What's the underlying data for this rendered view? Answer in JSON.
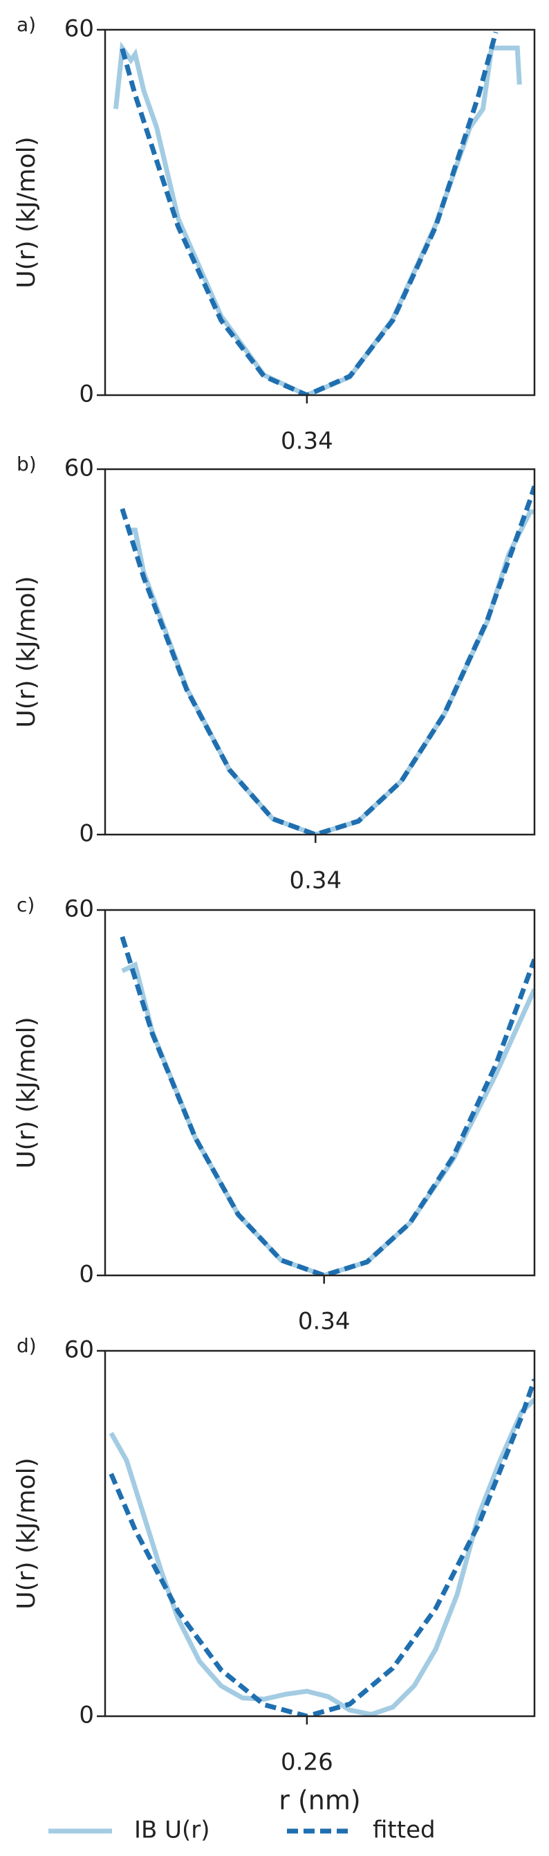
{
  "chart_data": [
    {
      "type": "line",
      "panel_label": "a)",
      "ylabel": "U(r) (kJ/mol)",
      "xlim": [
        0.293,
        0.393
      ],
      "xticks": [
        0.34
      ],
      "ylim": [
        0,
        60
      ],
      "yticks": [
        0,
        60
      ],
      "series": [
        {
          "color": "#a3cce3",
          "dash": false,
          "x": [
            0.2955,
            0.297,
            0.299,
            0.3,
            0.302,
            0.305,
            0.31,
            0.32,
            0.33,
            0.34,
            0.35,
            0.36,
            0.37,
            0.378,
            0.381,
            0.383,
            0.386,
            0.389,
            0.3895
          ],
          "values": [
            47,
            57,
            55,
            56,
            50,
            44,
            29,
            13,
            3.3,
            0,
            3,
            12.5,
            28,
            44,
            47,
            57,
            57,
            57,
            51
          ]
        },
        {
          "color": "#1f6fb0",
          "dash": true,
          "x": [
            0.297,
            0.3,
            0.31,
            0.32,
            0.33,
            0.34,
            0.35,
            0.36,
            0.37,
            0.38,
            0.384
          ],
          "values": [
            56.9,
            49.3,
            27.7,
            12.3,
            3.1,
            0,
            3.1,
            12.3,
            27.7,
            49.3,
            59.6
          ]
        }
      ]
    },
    {
      "type": "line",
      "panel_label": "b)",
      "ylabel": "U(r) (kJ/mol)",
      "xlim": [
        0.291,
        0.391
      ],
      "xticks": [
        0.34
      ],
      "ylim": [
        0,
        60
      ],
      "yticks": [
        0,
        60
      ],
      "series": [
        {
          "color": "#a3cce3",
          "dash": false,
          "x": [
            0.296,
            0.298,
            0.3,
            0.31,
            0.32,
            0.33,
            0.34,
            0.35,
            0.36,
            0.37,
            0.38,
            0.385,
            0.39,
            0.391
          ],
          "values": [
            50,
            50,
            43,
            24,
            10.6,
            2.6,
            0,
            2.2,
            8.8,
            19.8,
            35,
            46,
            53,
            53
          ]
        },
        {
          "color": "#1f6fb0",
          "dash": true,
          "x": [
            0.295,
            0.3,
            0.31,
            0.32,
            0.33,
            0.34,
            0.35,
            0.36,
            0.37,
            0.38,
            0.39,
            0.391
          ],
          "values": [
            53.5,
            42.2,
            23.8,
            10.6,
            2.6,
            0,
            2.2,
            8.8,
            19.8,
            35.2,
            55,
            57.2
          ]
        }
      ]
    },
    {
      "type": "line",
      "panel_label": "c)",
      "ylabel": "U(r) (kJ/mol)",
      "xlim": [
        0.289,
        0.389
      ],
      "xticks": [
        0.34
      ],
      "ylim": [
        0,
        60
      ],
      "yticks": [
        0,
        60
      ],
      "series": [
        {
          "color": "#a3cce3",
          "dash": false,
          "x": [
            0.293,
            0.296,
            0.3,
            0.31,
            0.32,
            0.33,
            0.34,
            0.35,
            0.36,
            0.37,
            0.38,
            0.389
          ],
          "values": [
            50,
            51,
            40,
            22.6,
            10,
            2.5,
            0,
            2.2,
            8.6,
            19,
            33,
            47
          ]
        },
        {
          "color": "#1f6fb0",
          "dash": true,
          "x": [
            0.293,
            0.3,
            0.31,
            0.32,
            0.33,
            0.34,
            0.35,
            0.36,
            0.37,
            0.38,
            0.389
          ],
          "values": [
            55.6,
            39.7,
            22.6,
            10,
            2.5,
            0,
            2.2,
            8.6,
            19.4,
            34.6,
            51.9
          ]
        }
      ]
    },
    {
      "type": "line",
      "panel_label": "d)",
      "ylabel": "U(r) (kJ/mol)",
      "xlabel": "r (nm)",
      "xlim": [
        0.213,
        0.313
      ],
      "xticks": [
        0.26
      ],
      "ylim": [
        0,
        60
      ],
      "yticks": [
        0,
        60
      ],
      "series": [
        {
          "name": "IB U(r)",
          "color": "#a3cce3",
          "dash": false,
          "x": [
            0.2144,
            0.218,
            0.222,
            0.226,
            0.23,
            0.235,
            0.24,
            0.245,
            0.25,
            0.255,
            0.26,
            0.265,
            0.27,
            0.275,
            0.28,
            0.285,
            0.29,
            0.295,
            0.3,
            0.305,
            0.31,
            0.313
          ],
          "values": [
            46.5,
            42,
            33,
            24,
            16,
            9,
            5,
            3,
            2.8,
            3.6,
            4.1,
            3.2,
            1,
            0.3,
            1.5,
            5,
            11,
            20,
            33,
            42,
            50,
            52
          ]
        },
        {
          "name": "fitted",
          "color": "#1f6fb0",
          "dash": true,
          "x": [
            0.2144,
            0.22,
            0.23,
            0.24,
            0.25,
            0.26,
            0.27,
            0.28,
            0.29,
            0.3,
            0.31,
            0.313
          ],
          "values": [
            39.8,
            30.6,
            17.2,
            7.6,
            1.9,
            0,
            2,
            7.9,
            17.7,
            31.5,
            49.2,
            55.3
          ]
        }
      ]
    }
  ]
}
